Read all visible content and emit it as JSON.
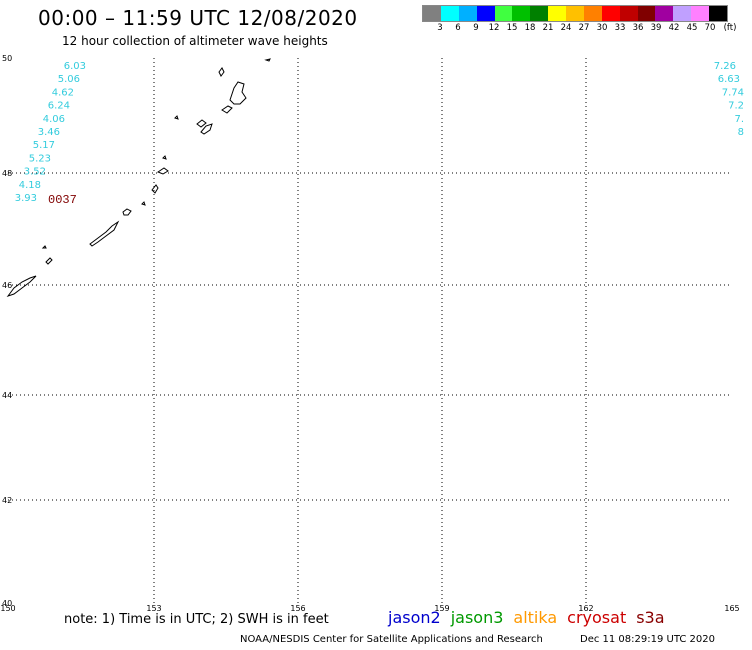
{
  "header": {
    "title": "00:00 – 11:59 UTC 12/08/2020",
    "subtitle": "12 hour collection of altimeter wave heights"
  },
  "legend": {
    "units": "(ft)",
    "colors": [
      "#808080",
      "#00ffff",
      "#00b0ff",
      "#0000ff",
      "#40ff40",
      "#00c000",
      "#008000",
      "#ffff00",
      "#ffc000",
      "#ff8000",
      "#ff0000",
      "#c00000",
      "#800000",
      "#a000a0",
      "#c0a0ff",
      "#ff80ff",
      "#000000"
    ],
    "labels": [
      "3",
      "6",
      "9",
      "12",
      "15",
      "18",
      "21",
      "24",
      "27",
      "30",
      "33",
      "36",
      "39",
      "42",
      "45",
      "70"
    ]
  },
  "axes": {
    "lat_labels": [
      "50",
      "48",
      "46",
      "44",
      "42",
      "40"
    ],
    "lon_labels": [
      "150",
      "153",
      "156",
      "159",
      "162",
      "165"
    ]
  },
  "track_left": [
    "6.03",
    "5.06",
    "4.62",
    "6.24",
    "4.06",
    "3.46",
    "5.17",
    "5.23",
    "3.52",
    "4.18",
    "3.93"
  ],
  "track_right": [
    "7.26",
    "6.63",
    "7.74",
    "7.2",
    "7.",
    "8"
  ],
  "time_label": "0037",
  "colors": {
    "track": "#33ccdd",
    "time": "#800000",
    "grid": "#000000"
  },
  "footer": {
    "note": "note: 1) Time is in UTC; 2) SWH is in feet",
    "missions": [
      {
        "name": "jason2",
        "color": "#0000cc"
      },
      {
        "name": "jason3",
        "color": "#009900"
      },
      {
        "name": "altika",
        "color": "#ff9900"
      },
      {
        "name": "cryosat",
        "color": "#cc0000"
      },
      {
        "name": "s3a",
        "color": "#880000"
      }
    ],
    "credit": "NOAA/NESDIS Center for Satellite Applications and Research",
    "date": "Dec 11 08:29:19 UTC 2020"
  }
}
